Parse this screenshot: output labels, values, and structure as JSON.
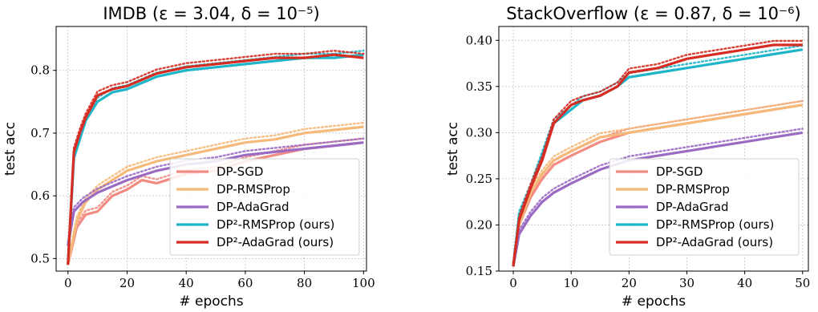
{
  "chart_data": [
    {
      "type": "line",
      "title": "IMDB (ε = 3.04, δ = 10⁻⁵)",
      "xlabel": "# epochs",
      "ylabel": "test acc",
      "xlim": [
        -4,
        101
      ],
      "ylim": [
        0.48,
        0.87
      ],
      "xticks": [
        "0",
        "20",
        "40",
        "60",
        "80",
        "100"
      ],
      "yticks": [
        "0.5",
        "0.6",
        "0.7",
        "0.8"
      ],
      "grid": true,
      "legend_position": "lower-right",
      "series": [
        {
          "name": "DP-SGD",
          "color": "#f28b82",
          "x": [
            0,
            3,
            6,
            10,
            15,
            20,
            25,
            30,
            40,
            50,
            60,
            70,
            80,
            90,
            100
          ],
          "y": [
            0.49,
            0.55,
            0.57,
            0.575,
            0.6,
            0.61,
            0.625,
            0.62,
            0.635,
            0.64,
            0.655,
            0.665,
            0.675,
            0.68,
            0.685
          ]
        },
        {
          "name": "DP-RMSProp",
          "color": "#f5b97a",
          "x": [
            0,
            3,
            6,
            10,
            15,
            20,
            30,
            40,
            50,
            60,
            70,
            80,
            90,
            100
          ],
          "y": [
            0.49,
            0.56,
            0.59,
            0.61,
            0.625,
            0.64,
            0.655,
            0.665,
            0.675,
            0.685,
            0.69,
            0.7,
            0.705,
            0.71
          ]
        },
        {
          "name": "DP-AdaGrad",
          "color": "#9b6bc4",
          "x": [
            0,
            2,
            5,
            10,
            15,
            20,
            30,
            40,
            50,
            60,
            70,
            80,
            90,
            100
          ],
          "y": [
            0.52,
            0.575,
            0.59,
            0.605,
            0.615,
            0.625,
            0.64,
            0.65,
            0.655,
            0.665,
            0.67,
            0.675,
            0.68,
            0.685
          ]
        },
        {
          "name": "DP²-RMSProp (ours)",
          "color": "#1fb5c9",
          "x": [
            0,
            2,
            4,
            6,
            10,
            15,
            20,
            25,
            30,
            40,
            50,
            60,
            70,
            80,
            90,
            100
          ],
          "y": [
            0.49,
            0.66,
            0.69,
            0.72,
            0.75,
            0.765,
            0.77,
            0.78,
            0.79,
            0.8,
            0.805,
            0.81,
            0.815,
            0.82,
            0.82,
            0.825
          ]
        },
        {
          "name": "DP²-AdaGrad (ours)",
          "color": "#d62c22",
          "x": [
            0,
            2,
            4,
            6,
            10,
            15,
            20,
            25,
            30,
            40,
            50,
            60,
            70,
            80,
            90,
            100
          ],
          "y": [
            0.49,
            0.67,
            0.7,
            0.725,
            0.76,
            0.77,
            0.775,
            0.785,
            0.795,
            0.805,
            0.81,
            0.815,
            0.82,
            0.82,
            0.825,
            0.82
          ]
        }
      ]
    },
    {
      "type": "line",
      "title": "StackOverflow (ε = 0.87, δ = 10⁻⁶)",
      "xlabel": "# epochs",
      "ylabel": "test acc",
      "xlim": [
        -2.5,
        51
      ],
      "ylim": [
        0.15,
        0.415
      ],
      "xticks": [
        "0",
        "10",
        "20",
        "30",
        "40",
        "50"
      ],
      "yticks": [
        "0.15",
        "0.20",
        "0.25",
        "0.30",
        "0.35",
        "0.40"
      ],
      "grid": true,
      "legend_position": "lower-right",
      "series": [
        {
          "name": "DP-SGD",
          "color": "#f28b82",
          "x": [
            0,
            1,
            3,
            5,
            7,
            10,
            15,
            20,
            25,
            30,
            35,
            40,
            45,
            50
          ],
          "y": [
            0.155,
            0.2,
            0.23,
            0.25,
            0.265,
            0.275,
            0.29,
            0.3,
            0.305,
            0.31,
            0.315,
            0.32,
            0.325,
            0.33
          ]
        },
        {
          "name": "DP-RMSProp",
          "color": "#f5b97a",
          "x": [
            0,
            1,
            3,
            5,
            7,
            10,
            15,
            20,
            25,
            30,
            35,
            40,
            45,
            50
          ],
          "y": [
            0.155,
            0.2,
            0.235,
            0.255,
            0.27,
            0.28,
            0.295,
            0.3,
            0.305,
            0.31,
            0.315,
            0.32,
            0.325,
            0.33
          ]
        },
        {
          "name": "DP-AdaGrad",
          "color": "#9b6bc4",
          "x": [
            0,
            1,
            3,
            5,
            7,
            10,
            15,
            20,
            25,
            30,
            35,
            40,
            45,
            50
          ],
          "y": [
            0.155,
            0.19,
            0.21,
            0.225,
            0.235,
            0.245,
            0.26,
            0.27,
            0.275,
            0.28,
            0.285,
            0.29,
            0.295,
            0.3
          ]
        },
        {
          "name": "DP²-RMSProp (ours)",
          "color": "#1fb5c9",
          "x": [
            0,
            1,
            3,
            5,
            7,
            10,
            12,
            15,
            18,
            20,
            25,
            30,
            35,
            40,
            45,
            50
          ],
          "y": [
            0.155,
            0.21,
            0.24,
            0.275,
            0.31,
            0.325,
            0.335,
            0.34,
            0.35,
            0.36,
            0.365,
            0.37,
            0.375,
            0.38,
            0.385,
            0.39
          ]
        },
        {
          "name": "DP²-AdaGrad (ours)",
          "color": "#d62c22",
          "x": [
            0,
            1,
            3,
            5,
            7,
            10,
            12,
            15,
            18,
            20,
            25,
            30,
            35,
            40,
            45,
            50
          ],
          "y": [
            0.155,
            0.205,
            0.24,
            0.27,
            0.31,
            0.33,
            0.335,
            0.34,
            0.35,
            0.365,
            0.37,
            0.38,
            0.385,
            0.39,
            0.395,
            0.395
          ]
        }
      ]
    }
  ]
}
